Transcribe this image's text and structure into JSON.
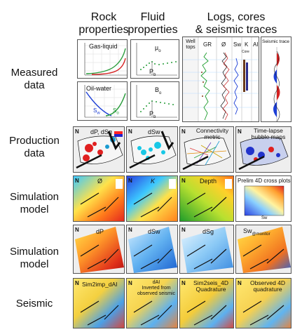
{
  "headers": {
    "rock_properties": [
      "Rock",
      "properties"
    ],
    "fluid_properties": [
      "Fluid",
      "properties"
    ],
    "logs": [
      "Logs, cores",
      "& seismic traces"
    ]
  },
  "rows": {
    "measured": [
      "Measured",
      "data"
    ],
    "production": [
      "Production",
      "data"
    ],
    "simulation1": [
      "Simulation",
      "model"
    ],
    "simulation2": [
      "Simulation",
      "model"
    ],
    "seismic": [
      "Seismic"
    ]
  },
  "measured": {
    "gas_liquid": "Gas-liquid",
    "oil_water": "Oil-water",
    "sw": "S",
    "sw_sub": "w",
    "so": "S",
    "so_sub": "o",
    "mu": "µ",
    "mu_sub": "o",
    "bo": "B",
    "bo_sub": "o",
    "pb": "P",
    "pb_sub": "b",
    "pb2": "P",
    "pb2_sub": "b",
    "well_tops": [
      "Well",
      "tops"
    ],
    "gr": "GR",
    "phi": "Ø",
    "swlog": "Sw",
    "k": "K",
    "core": "Core",
    "ai": "AI",
    "seismic_trace": "Seismic trace"
  },
  "production": {
    "p1": "dP, dSg",
    "p2": "dSw",
    "p3": [
      "Connectivity",
      "metric"
    ],
    "p4": [
      "Time-lapse",
      "bubble maps"
    ]
  },
  "sim1": {
    "p1": "Ø",
    "p2": "K",
    "p3": "Depth",
    "p4": "Prelim 4D cross plots",
    "sw_axis": "Sw"
  },
  "sim2": {
    "p1": "dP",
    "p2": "dSw",
    "p3": "dSg",
    "p4": "Sw",
    "p4_sub": "@monitor"
  },
  "seismic": {
    "p1": "Sim2imp_dAI",
    "p2": [
      "dAI",
      "Inverted from",
      "observed seismic"
    ],
    "p3": [
      "Sim2seis_4D",
      "Quadrature"
    ],
    "p4": [
      "Observed 4D",
      "quadrature"
    ]
  },
  "north_label": "N"
}
